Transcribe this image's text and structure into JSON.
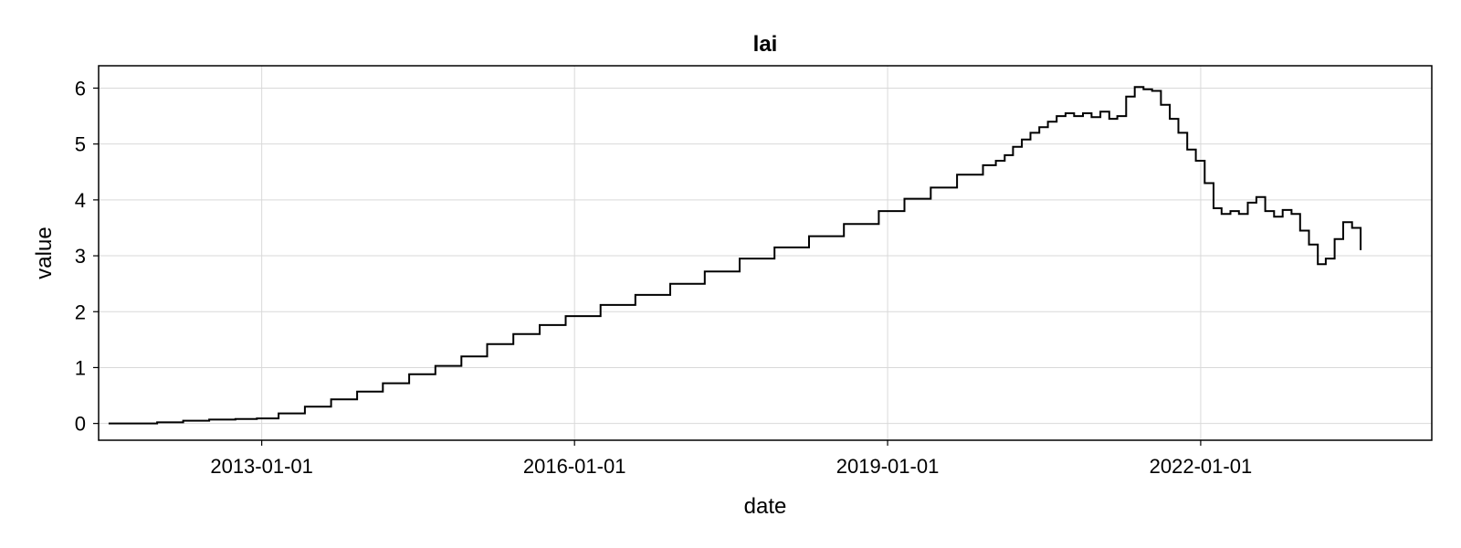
{
  "chart_data": {
    "type": "line",
    "title": "lai",
    "xlabel": "date",
    "ylabel": "value",
    "x_ticks": [
      "2013-01-01",
      "2016-01-01",
      "2019-01-01",
      "2022-01-01"
    ],
    "y_ticks": [
      0,
      1,
      2,
      3,
      4,
      5,
      6
    ],
    "xlim": [
      "2011-06-10",
      "2024-03-20"
    ],
    "ylim": [
      -0.3,
      6.4
    ],
    "grid": true,
    "step": true,
    "series": [
      {
        "color": "#000000",
        "x": [
          "2011-07-15",
          "2011-10-01",
          "2012-01-01",
          "2012-04-01",
          "2012-07-01",
          "2012-10-01",
          "2012-12-15",
          "2013-03-01",
          "2013-06-01",
          "2013-09-01",
          "2013-12-01",
          "2014-03-01",
          "2014-06-01",
          "2014-09-01",
          "2014-12-01",
          "2015-03-01",
          "2015-06-01",
          "2015-09-01",
          "2015-12-01",
          "2016-04-01",
          "2016-08-01",
          "2016-12-01",
          "2017-04-01",
          "2017-08-01",
          "2017-12-01",
          "2018-04-01",
          "2018-08-01",
          "2018-12-01",
          "2019-03-01",
          "2019-06-01",
          "2019-09-01",
          "2019-12-01",
          "2020-01-15",
          "2020-02-15",
          "2020-03-15",
          "2020-04-15",
          "2020-05-15",
          "2020-06-15",
          "2020-07-15",
          "2020-08-15",
          "2020-09-15",
          "2020-10-15",
          "2020-11-15",
          "2020-12-15",
          "2021-01-15",
          "2021-02-15",
          "2021-03-15",
          "2021-04-15",
          "2021-05-15",
          "2021-06-15",
          "2021-07-15",
          "2021-08-15",
          "2021-09-15",
          "2021-10-15",
          "2021-11-15",
          "2021-12-15",
          "2022-01-15",
          "2022-02-15",
          "2022-03-15",
          "2022-04-15",
          "2022-05-15",
          "2022-06-15",
          "2022-07-15",
          "2022-08-15",
          "2022-09-15",
          "2022-10-15",
          "2022-11-15",
          "2022-12-15",
          "2023-01-15",
          "2023-02-15",
          "2023-03-15",
          "2023-04-15",
          "2023-05-15",
          "2023-06-15",
          "2023-07-15"
        ],
        "values": [
          0.0,
          0.0,
          0.02,
          0.05,
          0.07,
          0.08,
          0.09,
          0.18,
          0.3,
          0.43,
          0.57,
          0.72,
          0.88,
          1.03,
          1.2,
          1.42,
          1.6,
          1.76,
          1.92,
          2.12,
          2.3,
          2.5,
          2.72,
          2.95,
          3.15,
          3.35,
          3.57,
          3.8,
          4.02,
          4.22,
          4.45,
          4.62,
          4.7,
          4.8,
          4.95,
          5.08,
          5.2,
          5.3,
          5.4,
          5.5,
          5.55,
          5.5,
          5.55,
          5.48,
          5.58,
          5.45,
          5.5,
          5.85,
          6.02,
          5.98,
          5.95,
          5.7,
          5.45,
          5.2,
          4.9,
          4.7,
          4.3,
          3.85,
          3.75,
          3.8,
          3.75,
          3.95,
          4.05,
          3.8,
          3.7,
          3.82,
          3.75,
          3.45,
          3.2,
          2.85,
          2.95,
          3.3,
          3.6,
          3.5,
          3.1
        ]
      }
    ]
  }
}
